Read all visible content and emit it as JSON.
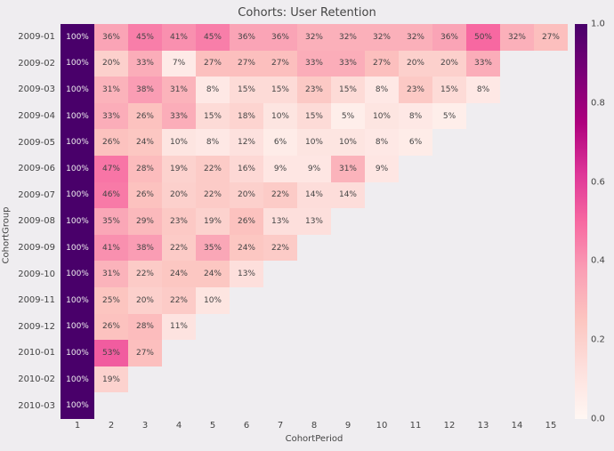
{
  "title": "Cohorts: User Retention",
  "xlabel": "CohortPeriod",
  "ylabel": "CohortGroup",
  "x_categories": [
    "1",
    "2",
    "3",
    "4",
    "5",
    "6",
    "7",
    "8",
    "9",
    "10",
    "11",
    "12",
    "13",
    "14",
    "15"
  ],
  "y_categories": [
    "2009-01",
    "2009-02",
    "2009-03",
    "2009-04",
    "2009-05",
    "2009-06",
    "2009-07",
    "2009-08",
    "2009-09",
    "2009-10",
    "2009-11",
    "2009-12",
    "2010-01",
    "2010-02",
    "2010-03"
  ],
  "values": [
    [
      1.0,
      0.36,
      0.45,
      0.41,
      0.45,
      0.36,
      0.36,
      0.32,
      0.32,
      0.32,
      0.32,
      0.36,
      0.5,
      0.32,
      0.27
    ],
    [
      1.0,
      0.2,
      0.33,
      0.07,
      0.27,
      0.27,
      0.27,
      0.33,
      0.33,
      0.27,
      0.2,
      0.2,
      0.33,
      null,
      null
    ],
    [
      1.0,
      0.31,
      0.38,
      0.31,
      0.08,
      0.15,
      0.15,
      0.23,
      0.15,
      0.08,
      0.23,
      0.15,
      0.08,
      null,
      null
    ],
    [
      1.0,
      0.33,
      0.26,
      0.33,
      0.15,
      0.18,
      0.1,
      0.15,
      0.05,
      0.1,
      0.08,
      0.05,
      null,
      null,
      null
    ],
    [
      1.0,
      0.26,
      0.24,
      0.1,
      0.08,
      0.12,
      0.06,
      0.1,
      0.1,
      0.08,
      0.06,
      null,
      null,
      null,
      null
    ],
    [
      1.0,
      0.47,
      0.28,
      0.19,
      0.22,
      0.16,
      0.09,
      0.09,
      0.31,
      0.09,
      null,
      null,
      null,
      null,
      null
    ],
    [
      1.0,
      0.46,
      0.26,
      0.2,
      0.22,
      0.2,
      0.22,
      0.14,
      0.14,
      null,
      null,
      null,
      null,
      null,
      null
    ],
    [
      1.0,
      0.35,
      0.29,
      0.23,
      0.19,
      0.26,
      0.13,
      0.13,
      null,
      null,
      null,
      null,
      null,
      null,
      null
    ],
    [
      1.0,
      0.41,
      0.38,
      0.22,
      0.35,
      0.24,
      0.22,
      null,
      null,
      null,
      null,
      null,
      null,
      null,
      null
    ],
    [
      1.0,
      0.31,
      0.22,
      0.24,
      0.24,
      0.13,
      null,
      null,
      null,
      null,
      null,
      null,
      null,
      null,
      null
    ],
    [
      1.0,
      0.25,
      0.2,
      0.22,
      0.1,
      null,
      null,
      null,
      null,
      null,
      null,
      null,
      null,
      null,
      null
    ],
    [
      1.0,
      0.26,
      0.28,
      0.11,
      null,
      null,
      null,
      null,
      null,
      null,
      null,
      null,
      null,
      null,
      null
    ],
    [
      1.0,
      0.53,
      0.27,
      null,
      null,
      null,
      null,
      null,
      null,
      null,
      null,
      null,
      null,
      null,
      null
    ],
    [
      1.0,
      0.19,
      null,
      null,
      null,
      null,
      null,
      null,
      null,
      null,
      null,
      null,
      null,
      null,
      null
    ],
    [
      1.0,
      null,
      null,
      null,
      null,
      null,
      null,
      null,
      null,
      null,
      null,
      null,
      null,
      null,
      null
    ]
  ],
  "chart": {
    "type": "heatmap",
    "background_color": "#efedf0",
    "nan_color": "#efedf0",
    "annot_fontsize": 9,
    "tick_fontsize": 10,
    "title_fontsize": 13,
    "label_fontsize": 10,
    "annot_pct_format": "0%",
    "annot_100_label": "100%",
    "text_light": "#f0f0f0",
    "text_dark": "#444444",
    "text_light_threshold": 0.58,
    "colormap": {
      "name": "RdPu",
      "vmin": 0.0,
      "vmax": 1.0,
      "stops": [
        [
          0.0,
          "#fff7f3"
        ],
        [
          0.125,
          "#fde0dd"
        ],
        [
          0.25,
          "#fcc5c0"
        ],
        [
          0.375,
          "#fa9fb5"
        ],
        [
          0.5,
          "#f768a1"
        ],
        [
          0.625,
          "#dd3497"
        ],
        [
          0.75,
          "#ae017e"
        ],
        [
          0.875,
          "#7a0177"
        ],
        [
          1.0,
          "#49006a"
        ]
      ]
    },
    "colorbar": {
      "tick_positions": [
        0.0,
        0.2,
        0.4,
        0.6,
        0.8,
        1.0
      ],
      "tick_labels": [
        "0.0",
        "0.2",
        "0.4",
        "0.6",
        "0.8",
        "1.0"
      ]
    }
  }
}
